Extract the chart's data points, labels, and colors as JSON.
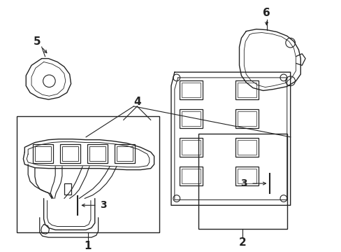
{
  "bg_color": "#ffffff",
  "line_color": "#222222",
  "text_color": "#222222",
  "fig_w": 4.89,
  "fig_h": 3.6,
  "dpi": 100
}
